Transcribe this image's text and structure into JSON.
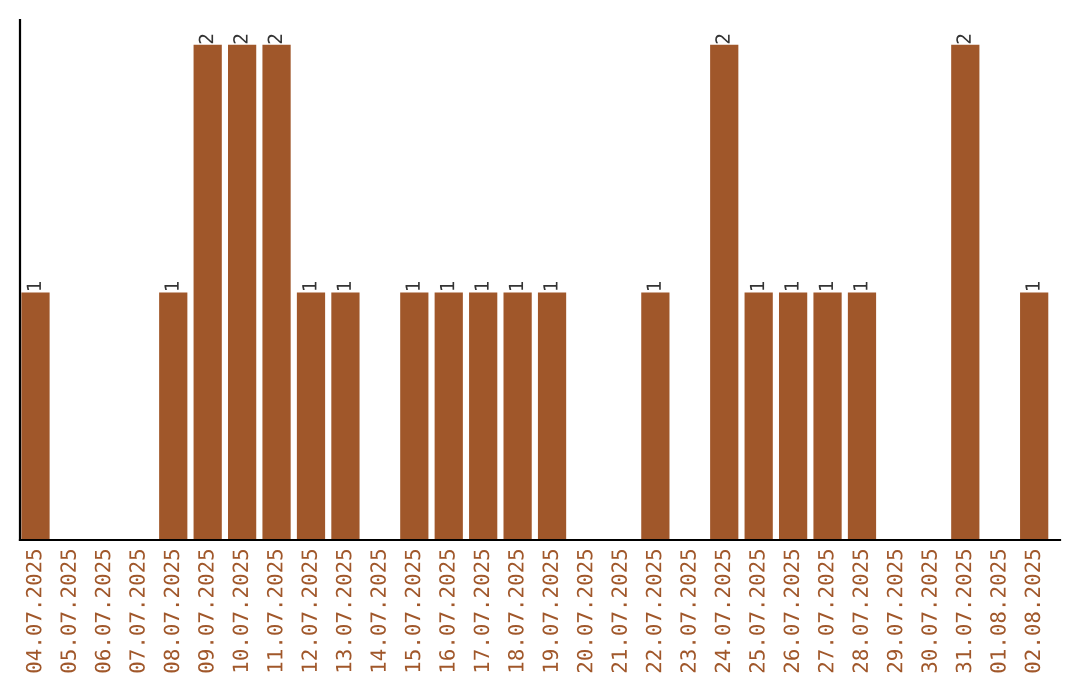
{
  "chart_data": {
    "type": "bar",
    "categories": [
      "04.07.2025",
      "05.07.2025",
      "06.07.2025",
      "07.07.2025",
      "08.07.2025",
      "09.07.2025",
      "10.07.2025",
      "11.07.2025",
      "12.07.2025",
      "13.07.2025",
      "14.07.2025",
      "15.07.2025",
      "16.07.2025",
      "17.07.2025",
      "18.07.2025",
      "19.07.2025",
      "20.07.2025",
      "21.07.2025",
      "22.07.2025",
      "23.07.2025",
      "24.07.2025",
      "25.07.2025",
      "26.07.2025",
      "27.07.2025",
      "28.07.2025",
      "29.07.2025",
      "30.07.2025",
      "31.07.2025",
      "01.08.2025",
      "02.08.2025"
    ],
    "values": [
      1,
      0,
      0,
      0,
      1,
      2,
      2,
      2,
      1,
      1,
      0,
      1,
      1,
      1,
      1,
      1,
      0,
      0,
      1,
      0,
      2,
      1,
      1,
      1,
      1,
      0,
      0,
      2,
      0,
      1
    ],
    "value_labels": [
      "1",
      null,
      null,
      null,
      "1",
      "2",
      "2",
      "2",
      "1",
      "1",
      null,
      "1",
      "1",
      "1",
      "1",
      "1",
      null,
      null,
      "1",
      null,
      "2",
      "1",
      "1",
      "1",
      "1",
      null,
      null,
      "2",
      null,
      "1"
    ],
    "color": "#a0572a",
    "tick_labels": "x",
    "grid": false,
    "legend": false
  }
}
